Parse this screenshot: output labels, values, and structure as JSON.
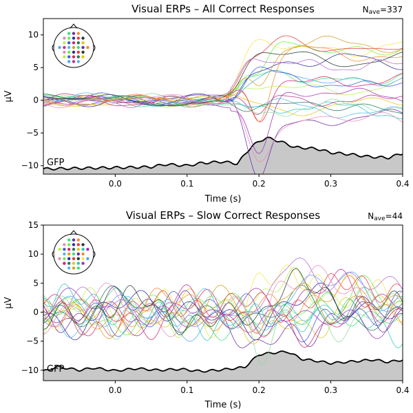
{
  "chart_data": [
    {
      "type": "line",
      "title": "Visual ERPs – All Correct Responses",
      "nave_label": "N",
      "nave_sub": "ave",
      "nave_value": "=337",
      "xlabel": "Time (s)",
      "ylabel": "µV",
      "xlim": [
        -0.1,
        0.4
      ],
      "ylim": [
        -11.3,
        12.5
      ],
      "xticks": [
        0.0,
        0.1,
        0.2,
        0.3,
        0.4
      ],
      "xtick_labels": [
        "0.0",
        "0.1",
        "0.2",
        "0.3",
        "0.4"
      ],
      "yticks": [
        -10,
        -5,
        0,
        5,
        10
      ],
      "ytick_labels": [
        "−10",
        "−5",
        "0",
        "5",
        "10"
      ],
      "gfp_label": "GFP",
      "gfp": {
        "x": [
          -0.1,
          -0.05,
          0.0,
          0.05,
          0.07,
          0.1,
          0.12,
          0.15,
          0.17,
          0.19,
          0.21,
          0.23,
          0.25,
          0.28,
          0.3,
          0.33,
          0.35,
          0.38,
          0.4
        ],
        "y": [
          -10.5,
          -10.4,
          -10.3,
          -10.2,
          -9.8,
          -10.0,
          -9.6,
          -9.4,
          -9.7,
          -7.0,
          -5.7,
          -6.3,
          -7.2,
          -7.4,
          -8.0,
          -8.3,
          -8.6,
          -8.8,
          -8.1
        ]
      },
      "channel_colors": [
        "#e6c619",
        "#f2e64a",
        "#b8f24a",
        "#66f24a",
        "#3ee07a",
        "#29c9b9",
        "#4aa9f2",
        "#3d5bd9",
        "#2f2a9e",
        "#6b2aa8",
        "#a02fbf",
        "#c02f8f",
        "#d9246a",
        "#e63c3c",
        "#f28c28",
        "#8fd9a0",
        "#57b8e6",
        "#1f7a5a",
        "#263e2a",
        "#b56ad9",
        "#e88ac2",
        "#d4a020"
      ],
      "channel_count": 22
    },
    {
      "type": "line",
      "title": "Visual ERPs – Slow Correct Responses",
      "nave_label": "N",
      "nave_sub": "ave",
      "nave_value": "=44",
      "xlabel": "Time (s)",
      "ylabel": "µV",
      "xlim": [
        -0.1,
        0.4
      ],
      "ylim": [
        -11.8,
        15.0
      ],
      "xticks": [
        0.0,
        0.1,
        0.2,
        0.3,
        0.4
      ],
      "xtick_labels": [
        "0.0",
        "0.1",
        "0.2",
        "0.3",
        "0.4"
      ],
      "yticks": [
        -10,
        -5,
        0,
        5,
        10,
        15
      ],
      "ytick_labels": [
        "−10",
        "−5",
        "0",
        "5",
        "10",
        "15"
      ],
      "gfp_label": "GFP",
      "gfp": {
        "x": [
          -0.1,
          -0.08,
          -0.05,
          -0.03,
          0.0,
          0.03,
          0.06,
          0.09,
          0.12,
          0.15,
          0.18,
          0.2,
          0.22,
          0.24,
          0.26,
          0.28,
          0.3,
          0.33,
          0.36,
          0.38,
          0.4
        ],
        "y": [
          -10.2,
          -9.4,
          -10.0,
          -9.6,
          -10.1,
          -9.7,
          -10.0,
          -9.8,
          -10.2,
          -9.9,
          -9.5,
          -7.3,
          -7.0,
          -6.8,
          -8.1,
          -8.4,
          -8.8,
          -8.5,
          -8.2,
          -8.6,
          -8.2
        ]
      },
      "channel_colors": [
        "#e6c619",
        "#f2e64a",
        "#b8f24a",
        "#66f24a",
        "#3ee07a",
        "#29c9b9",
        "#4aa9f2",
        "#3d5bd9",
        "#2f2a9e",
        "#6b2aa8",
        "#a02fbf",
        "#c02f8f",
        "#d9246a",
        "#e63c3c",
        "#f28c28",
        "#8fd9a0",
        "#57b8e6",
        "#1f7a5a",
        "#263e2a",
        "#b56ad9",
        "#e88ac2",
        "#d4a020"
      ],
      "channel_count": 22
    }
  ]
}
